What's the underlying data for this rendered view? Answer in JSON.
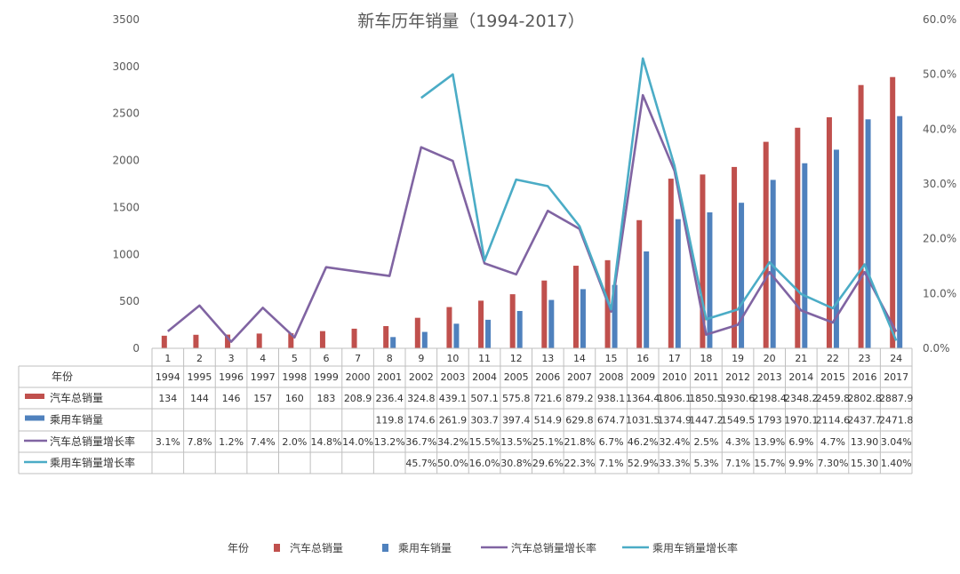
{
  "chart_data": {
    "type": "bar",
    "title": "新车历年销量（1994-2017）",
    "categories": [
      "1",
      "2",
      "3",
      "4",
      "5",
      "6",
      "7",
      "8",
      "9",
      "10",
      "11",
      "12",
      "13",
      "14",
      "15",
      "16",
      "17",
      "18",
      "19",
      "20",
      "21",
      "22",
      "23",
      "24"
    ],
    "left_axis": {
      "ylim": [
        0,
        3500
      ],
      "ticks": [
        "0",
        "500",
        "1000",
        "1500",
        "2000",
        "2500",
        "3000",
        "3500"
      ]
    },
    "right_axis": {
      "ylim": [
        0,
        0.6
      ],
      "ticks": [
        "0.0%",
        "10.0%",
        "20.0%",
        "30.0%",
        "40.0%",
        "50.0%",
        "60.0%"
      ]
    },
    "series": [
      {
        "name": "汽车总销量",
        "type": "bar",
        "axis": "left",
        "color": "#c0504d",
        "values": [
          134,
          144,
          146,
          157,
          160,
          183,
          208.9,
          236.4,
          324.8,
          439.1,
          507.1,
          575.8,
          721.6,
          879.2,
          938.1,
          1364.4,
          1806.1,
          1850.5,
          1930.6,
          2198.4,
          2348.2,
          2459.8,
          2802.8,
          2887.9
        ]
      },
      {
        "name": "乘用车销量",
        "type": "bar",
        "axis": "left",
        "color": "#4f81bd",
        "values": [
          null,
          null,
          null,
          null,
          null,
          null,
          null,
          119.8,
          174.6,
          261.9,
          303.7,
          397.4,
          514.9,
          629.8,
          674.7,
          1031.5,
          1374.9,
          1447.2,
          1549.5,
          1793,
          1970.1,
          2114.6,
          2437.7,
          2471.8
        ]
      },
      {
        "name": "汽车总销量增长率",
        "type": "line",
        "axis": "right",
        "color": "#8064a2",
        "values": [
          0.031,
          0.078,
          0.012,
          0.074,
          0.02,
          0.148,
          0.14,
          0.132,
          0.367,
          0.342,
          0.155,
          0.135,
          0.251,
          0.218,
          0.067,
          0.462,
          0.324,
          0.025,
          0.043,
          0.139,
          0.069,
          0.047,
          0.139,
          0.0304
        ]
      },
      {
        "name": "乘用车销量增长率",
        "type": "line",
        "axis": "right",
        "color": "#4bacc6",
        "values": [
          null,
          null,
          null,
          null,
          null,
          null,
          null,
          null,
          0.457,
          0.5,
          0.16,
          0.308,
          0.296,
          0.223,
          0.071,
          0.529,
          0.333,
          0.053,
          0.071,
          0.157,
          0.099,
          0.073,
          0.153,
          0.014
        ]
      }
    ],
    "table": {
      "rows": [
        {
          "label": "年份",
          "cells": [
            "1994",
            "1995",
            "1996",
            "1997",
            "1998",
            "1999",
            "2000",
            "2001",
            "2002",
            "2003",
            "2004",
            "2005",
            "2006",
            "2007",
            "2008",
            "2009",
            "2010",
            "2011",
            "2012",
            "2013",
            "2014",
            "2015",
            "2016",
            "2017"
          ]
        },
        {
          "label": "汽车总销量",
          "cells": [
            "134",
            "144",
            "146",
            "157",
            "160",
            "183",
            "208.9",
            "236.4",
            "324.8",
            "439.1",
            "507.1",
            "575.8",
            "721.6",
            "879.2",
            "938.1",
            "1364.4",
            "1806.1",
            "1850.5",
            "1930.6",
            "2198.4",
            "2348.2",
            "2459.8",
            "2802.8",
            "2887.9"
          ]
        },
        {
          "label": "乘用车销量",
          "cells": [
            "",
            "",
            "",
            "",
            "",
            "",
            "",
            "119.8",
            "174.6",
            "261.9",
            "303.7",
            "397.4",
            "514.9",
            "629.8",
            "674.7",
            "1031.5",
            "1374.9",
            "1447.2",
            "1549.5",
            "1793",
            "1970.1",
            "2114.6",
            "2437.7",
            "2471.8"
          ]
        },
        {
          "label": "汽车总销量增长率",
          "cells": [
            "3.1%",
            "7.8%",
            "1.2%",
            "7.4%",
            "2.0%",
            "14.8%",
            "14.0%",
            "13.2%",
            "36.7%",
            "34.2%",
            "15.5%",
            "13.5%",
            "25.1%",
            "21.8%",
            "6.7%",
            "46.2%",
            "32.4%",
            "2.5%",
            "4.3%",
            "13.9%",
            "6.9%",
            "4.7%",
            "13.90",
            "3.04%"
          ]
        },
        {
          "label": "乘用车销量增长率",
          "cells": [
            "",
            "",
            "",
            "",
            "",
            "",
            "",
            "",
            "45.7%",
            "50.0%",
            "16.0%",
            "30.8%",
            "29.6%",
            "22.3%",
            "7.1%",
            "52.9%",
            "33.3%",
            "5.3%",
            "7.1%",
            "15.7%",
            "9.9%",
            "7.30%",
            "15.30",
            "1.40%"
          ]
        }
      ]
    },
    "legend": {
      "placement": "bottom",
      "items": [
        "年份",
        "汽车总销量",
        "乘用车销量",
        "汽车总销量增长率",
        "乘用车销量增长率"
      ]
    }
  }
}
